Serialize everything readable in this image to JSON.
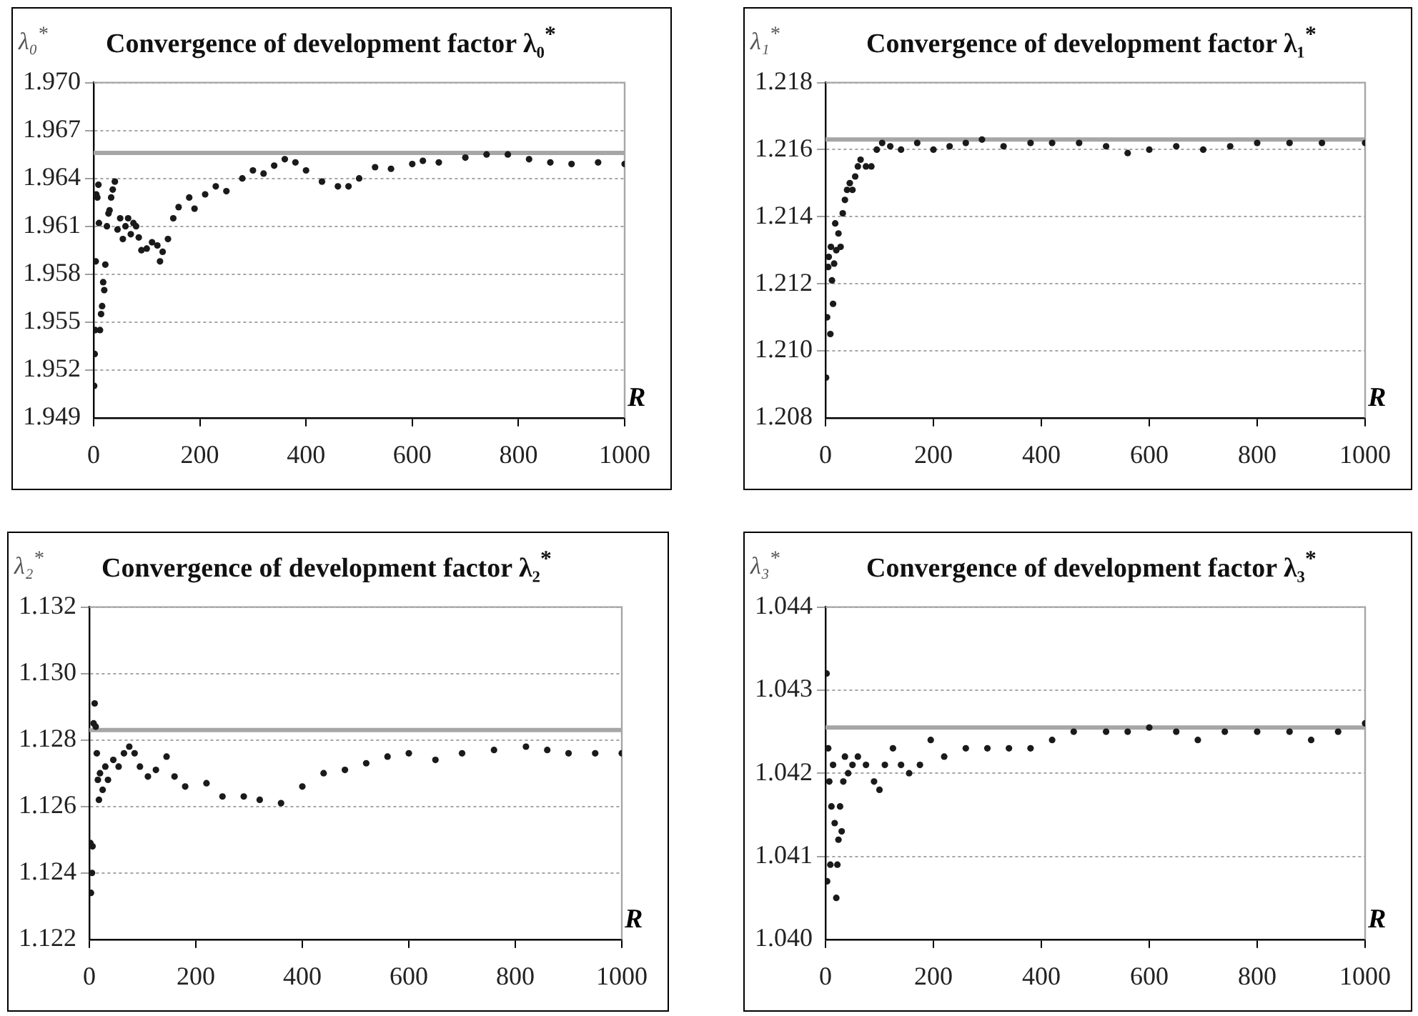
{
  "chart_data": [
    {
      "type": "scatter",
      "title": "Convergence of development factor λ₀$^{*}$",
      "ylabel": "λ₀$^{*}$",
      "xlabel": "R",
      "xlim": [
        0,
        1000
      ],
      "xticks": [
        0,
        200,
        400,
        600,
        800,
        1000
      ],
      "ylim": [
        1.949,
        1.97
      ],
      "yticks": [
        1.949,
        1.952,
        1.955,
        1.958,
        1.961,
        1.964,
        1.967,
        {
          "value": 1.97,
          "label": "1.970"
        }
      ],
      "grid": "y",
      "marker": "circle",
      "ref_lines": [
        {
          "axis": "y",
          "value": 1.9656,
          "color": "#a6a6a6"
        }
      ],
      "series": [
        {
          "color": "#1a1a1a",
          "x": [
            1,
            2,
            3,
            4,
            5,
            7,
            9,
            10,
            12,
            14,
            16,
            18,
            20,
            22,
            25,
            28,
            30,
            33,
            36,
            40,
            45,
            50,
            55,
            60,
            65,
            70,
            75,
            80,
            85,
            90,
            100,
            110,
            120,
            125,
            130,
            140,
            150,
            160,
            180,
            190,
            210,
            230,
            250,
            280,
            300,
            320,
            340,
            360,
            380,
            400,
            430,
            460,
            480,
            500,
            530,
            560,
            600,
            620,
            650,
            700,
            740,
            780,
            820,
            860,
            900,
            950,
            1000
          ],
          "values": [
            1.951,
            1.953,
            1.9545,
            1.9588,
            1.963,
            1.9628,
            1.9636,
            1.9612,
            1.9545,
            1.9555,
            1.956,
            1.9575,
            1.957,
            1.9586,
            1.961,
            1.9618,
            1.962,
            1.9628,
            1.9633,
            1.9638,
            1.9608,
            1.9615,
            1.9602,
            1.961,
            1.9615,
            1.9605,
            1.9612,
            1.961,
            1.9603,
            1.9595,
            1.9596,
            1.96,
            1.9598,
            1.9588,
            1.9594,
            1.9602,
            1.9615,
            1.9622,
            1.9628,
            1.9621,
            1.963,
            1.9635,
            1.9632,
            1.964,
            1.9645,
            1.9643,
            1.9648,
            1.9652,
            1.965,
            1.9645,
            1.9638,
            1.9635,
            1.9635,
            1.964,
            1.9647,
            1.9646,
            1.9649,
            1.9651,
            1.965,
            1.9653,
            1.9655,
            1.9655,
            1.9652,
            1.965,
            1.9649,
            1.965,
            1.9649
          ]
        }
      ]
    },
    {
      "type": "scatter",
      "title": "Convergence of development factor λ₁$^{*}$",
      "ylabel": "λ₁$^{*}$",
      "xlabel": "R",
      "xlim": [
        0,
        1000
      ],
      "xticks": [
        0,
        200,
        400,
        600,
        800,
        1000
      ],
      "ylim": [
        1.208,
        1.218
      ],
      "yticks": [
        1.208,
        {
          "value": 1.21,
          "label": "1.210"
        },
        1.212,
        1.214,
        1.216,
        1.218
      ],
      "grid": "y",
      "marker": "circle",
      "ref_lines": [
        {
          "axis": "y",
          "value": 1.2163,
          "color": "#a6a6a6"
        }
      ],
      "series": [
        {
          "color": "#1a1a1a",
          "x": [
            1,
            3,
            5,
            6,
            9,
            10,
            12,
            14,
            16,
            18,
            20,
            24,
            28,
            32,
            36,
            40,
            45,
            50,
            55,
            60,
            65,
            75,
            85,
            95,
            105,
            120,
            140,
            170,
            200,
            230,
            260,
            290,
            330,
            380,
            420,
            470,
            520,
            560,
            600,
            650,
            700,
            750,
            800,
            860,
            920,
            1000
          ],
          "values": [
            1.2092,
            1.211,
            1.2125,
            1.2128,
            1.2105,
            1.2131,
            1.2121,
            1.2114,
            1.2126,
            1.2138,
            1.213,
            1.2135,
            1.2131,
            1.2141,
            1.2145,
            1.2148,
            1.215,
            1.2148,
            1.2152,
            1.2155,
            1.2157,
            1.2155,
            1.2155,
            1.216,
            1.2162,
            1.2161,
            1.216,
            1.2162,
            1.216,
            1.2161,
            1.2162,
            1.2163,
            1.2161,
            1.2162,
            1.2162,
            1.2162,
            1.2161,
            1.2159,
            1.216,
            1.2161,
            1.216,
            1.2161,
            1.2162,
            1.2162,
            1.2162,
            1.2162
          ]
        }
      ]
    },
    {
      "type": "scatter",
      "title": "Convergence of development factor λ₂$^{*}$",
      "ylabel": "λ₂$^{*}$",
      "xlabel": "R",
      "xlim": [
        0,
        1000
      ],
      "xticks": [
        0,
        200,
        400,
        600,
        800,
        1000
      ],
      "ylim": [
        1.122,
        1.132
      ],
      "yticks": [
        1.122,
        1.124,
        1.126,
        1.128,
        {
          "value": 1.13,
          "label": "1.130"
        },
        1.132
      ],
      "grid": "y",
      "marker": "circle",
      "ref_lines": [
        {
          "axis": "y",
          "value": 1.1283,
          "color": "#a6a6a6"
        }
      ],
      "series": [
        {
          "color": "#1a1a1a",
          "x": [
            2,
            3,
            5,
            6,
            8,
            10,
            12,
            14,
            16,
            18,
            20,
            25,
            30,
            35,
            45,
            55,
            65,
            75,
            85,
            95,
            110,
            125,
            145,
            160,
            180,
            220,
            250,
            290,
            320,
            360,
            400,
            440,
            480,
            520,
            560,
            600,
            650,
            700,
            760,
            820,
            860,
            900,
            950,
            1000
          ],
          "values": [
            1.1249,
            1.1234,
            1.124,
            1.1248,
            1.1285,
            1.1291,
            1.1284,
            1.1276,
            1.1268,
            1.1262,
            1.127,
            1.1265,
            1.1272,
            1.1268,
            1.1274,
            1.1272,
            1.1276,
            1.1278,
            1.1276,
            1.1272,
            1.1269,
            1.1271,
            1.1275,
            1.1269,
            1.1266,
            1.1267,
            1.1263,
            1.1263,
            1.1262,
            1.1261,
            1.1266,
            1.127,
            1.1271,
            1.1273,
            1.1275,
            1.1276,
            1.1274,
            1.1276,
            1.1277,
            1.1278,
            1.1277,
            1.1276,
            1.1276,
            1.1276
          ]
        }
      ]
    },
    {
      "type": "scatter",
      "title": "Convergence of development factor λ₃$^{*}$",
      "ylabel": "λ₃$^{*}$",
      "xlabel": "R",
      "xlim": [
        0,
        1000
      ],
      "xticks": [
        0,
        200,
        400,
        600,
        800,
        1000
      ],
      "ylim": [
        1.04,
        1.044
      ],
      "yticks": [
        {
          "value": 1.04,
          "label": "1.040"
        },
        1.041,
        1.042,
        1.043,
        1.044
      ],
      "grid": "y",
      "marker": "circle",
      "ref_lines": [
        {
          "axis": "y",
          "value": 1.04255,
          "color": "#a6a6a6"
        }
      ],
      "series": [
        {
          "color": "#1a1a1a",
          "x": [
            2,
            3,
            5,
            7,
            9,
            11,
            14,
            17,
            20,
            22,
            24,
            27,
            30,
            33,
            36,
            42,
            50,
            60,
            75,
            90,
            100,
            110,
            125,
            140,
            155,
            175,
            195,
            220,
            260,
            300,
            340,
            380,
            420,
            460,
            520,
            560,
            600,
            650,
            690,
            740,
            800,
            860,
            900,
            950,
            1000
          ],
          "values": [
            1.0432,
            1.0407,
            1.0423,
            1.0419,
            1.0409,
            1.0416,
            1.0421,
            1.0414,
            1.0405,
            1.0409,
            1.0412,
            1.0416,
            1.0413,
            1.0419,
            1.0422,
            1.042,
            1.0421,
            1.0422,
            1.0421,
            1.0419,
            1.0418,
            1.0421,
            1.0423,
            1.0421,
            1.042,
            1.0421,
            1.0424,
            1.0422,
            1.0423,
            1.0423,
            1.0423,
            1.0423,
            1.0424,
            1.0425,
            1.0425,
            1.0425,
            1.04255,
            1.0425,
            1.0424,
            1.0425,
            1.0425,
            1.0425,
            1.0424,
            1.0425,
            1.0426
          ]
        }
      ]
    }
  ]
}
